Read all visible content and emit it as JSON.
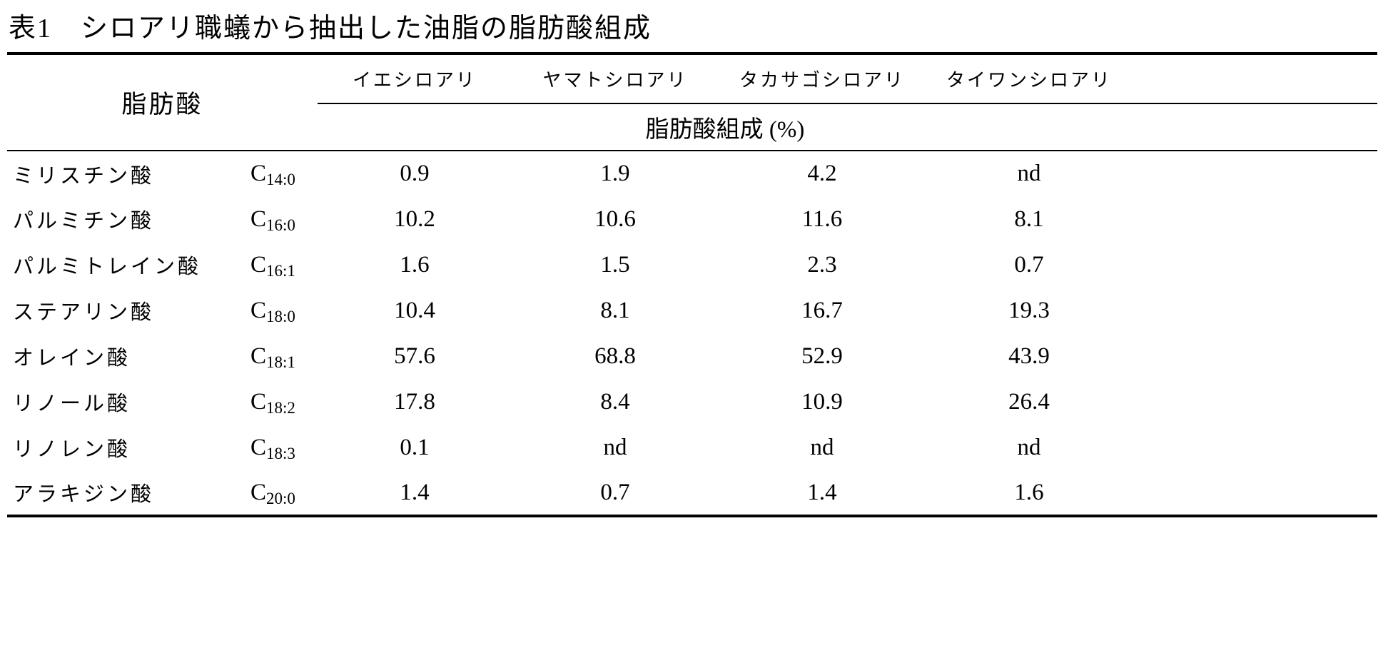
{
  "title": "表1　シロアリ職蟻から抽出した油脂の脂肪酸組成",
  "table": {
    "fatty_acid_header": "脂肪酸",
    "composition_header": "脂肪酸組成 (%)",
    "species": [
      "イエシロアリ",
      "ヤマトシロアリ",
      "タカサゴシロアリ",
      "タイワンシロアリ"
    ],
    "rows": [
      {
        "name": "ミリスチン酸",
        "c": "C",
        "sub": "14:0",
        "values": [
          "0.9",
          "1.9",
          "4.2",
          "nd"
        ]
      },
      {
        "name": "パルミチン酸",
        "c": "C",
        "sub": "16:0",
        "values": [
          "10.2",
          "10.6",
          "11.6",
          "8.1"
        ]
      },
      {
        "name": "パルミトレイン酸",
        "c": "C",
        "sub": "16:1",
        "values": [
          "1.6",
          "1.5",
          "2.3",
          "0.7"
        ]
      },
      {
        "name": "ステアリン酸",
        "c": "C",
        "sub": "18:0",
        "values": [
          "10.4",
          "8.1",
          "16.7",
          "19.3"
        ]
      },
      {
        "name": "オレイン酸",
        "c": "C",
        "sub": "18:1",
        "values": [
          "57.6",
          "68.8",
          "52.9",
          "43.9"
        ]
      },
      {
        "name": "リノール酸",
        "c": "C",
        "sub": "18:2",
        "values": [
          "17.8",
          "8.4",
          "10.9",
          "26.4"
        ]
      },
      {
        "name": "リノレン酸",
        "c": "C",
        "sub": "18:3",
        "values": [
          "0.1",
          "nd",
          "nd",
          "nd"
        ]
      },
      {
        "name": "アラキジン酸",
        "c": "C",
        "sub": "20:0",
        "values": [
          "1.4",
          "0.7",
          "1.4",
          "1.6"
        ]
      }
    ]
  }
}
